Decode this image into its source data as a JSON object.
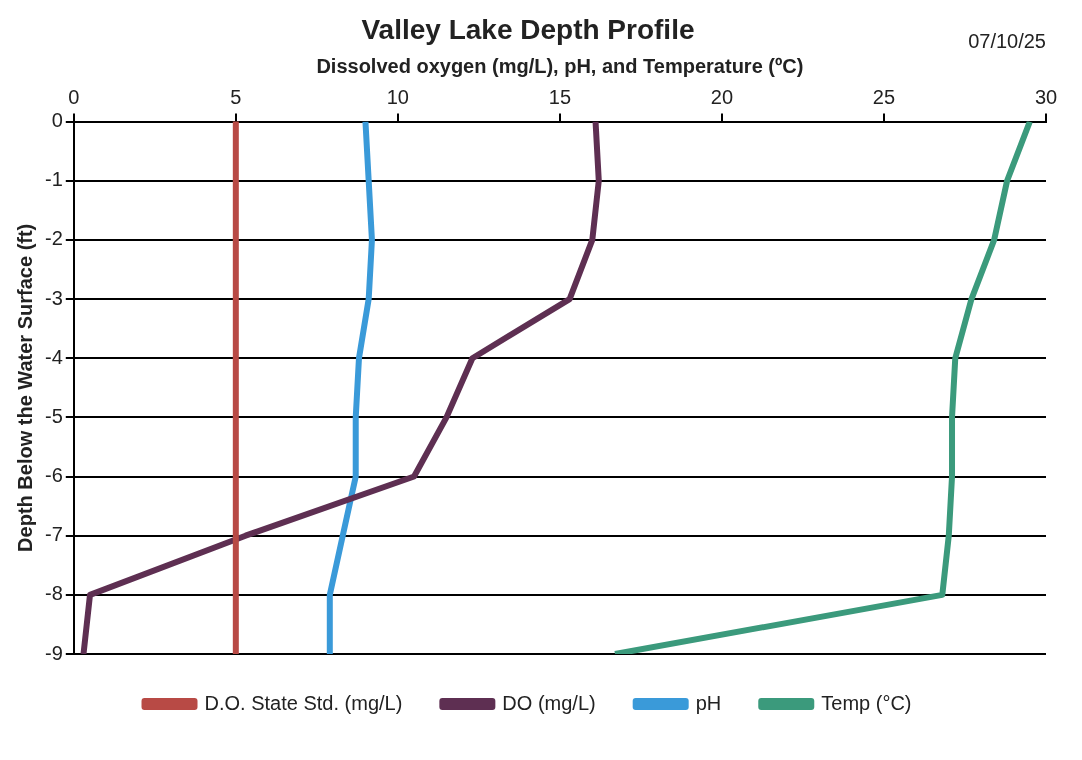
{
  "chart_data": {
    "type": "line",
    "title": "Valley Lake Depth Profile",
    "xlabel": "Dissolved oxygen (mg/L), pH, and Temperature (ºC)",
    "ylabel": "Depth Below the Water Surface (ft)",
    "annotations": [
      "07/10/25"
    ],
    "xlim": [
      0,
      30
    ],
    "xticks": [
      0,
      5,
      10,
      15,
      20,
      25,
      30
    ],
    "ylim": [
      -9,
      0
    ],
    "yticks": [
      0,
      -1,
      -2,
      -3,
      -4,
      -5,
      -6,
      -7,
      -8,
      -9
    ],
    "grid": "y",
    "legend": "bottom",
    "marker": "none",
    "line_style": "solid",
    "series": [
      {
        "name": "D.O. State Std. (mg/L)",
        "color": "#b84a45",
        "x": [
          5,
          5,
          5,
          5,
          5,
          5,
          5,
          5,
          5,
          5
        ],
        "values": [
          0,
          -1,
          -2,
          -3,
          -4,
          -5,
          -6,
          -7,
          -8,
          -9
        ]
      },
      {
        "name": "DO (mg/L)",
        "color": "#5e2f52",
        "x": [
          16.1,
          16.2,
          16.0,
          15.3,
          12.3,
          11.5,
          10.5,
          5.3,
          0.5,
          0.3
        ],
        "values": [
          0,
          -1,
          -2,
          -3,
          -4,
          -5,
          -6,
          -7,
          -8,
          -9
        ]
      },
      {
        "name": "pH",
        "color": "#3a9ad9",
        "x": [
          9.0,
          9.1,
          9.2,
          9.1,
          8.8,
          8.7,
          8.7,
          8.3,
          7.9,
          7.9
        ],
        "values": [
          0,
          -1,
          -2,
          -3,
          -4,
          -5,
          -6,
          -7,
          -8,
          -9
        ]
      },
      {
        "name": "Temp (°C)",
        "color": "#3b9a7c",
        "x": [
          29.5,
          28.8,
          28.4,
          27.7,
          27.2,
          27.1,
          27.1,
          27.0,
          26.8,
          16.7
        ],
        "values": [
          0,
          -1,
          -2,
          -3,
          -4,
          -5,
          -6,
          -7,
          -8,
          -9
        ]
      }
    ]
  }
}
